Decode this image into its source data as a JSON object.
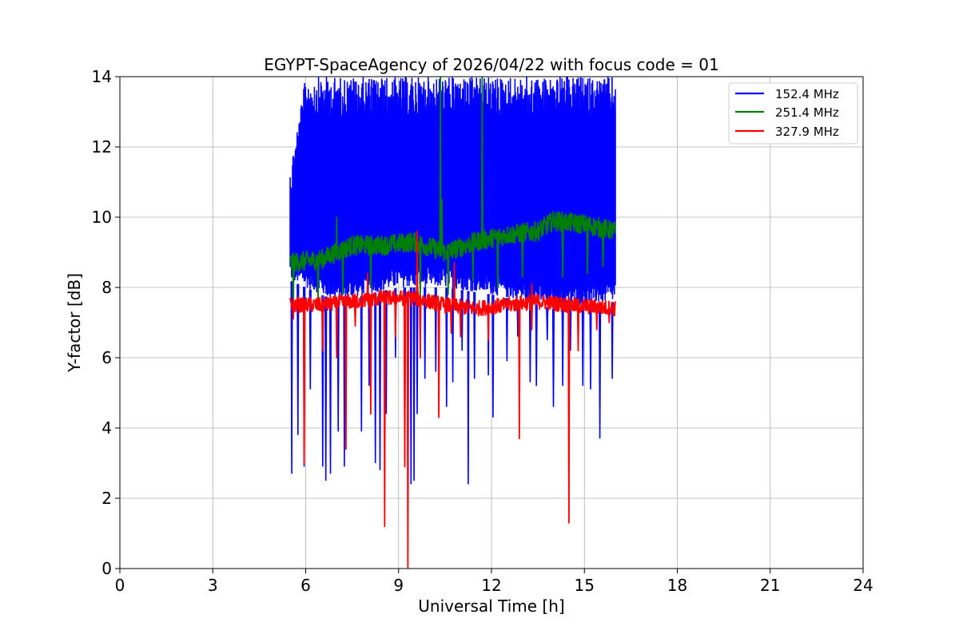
{
  "chart_data": {
    "type": "line",
    "title": "EGYPT-SpaceAgency of 2026/04/22 with focus code = 01",
    "xlabel": "Universal Time [h]",
    "ylabel": "Y-factor [dB]",
    "xlim": [
      0,
      24
    ],
    "ylim": [
      0,
      14
    ],
    "x_ticks": [
      "0",
      "3",
      "6",
      "9",
      "12",
      "15",
      "18",
      "21",
      "24"
    ],
    "y_ticks": [
      "0",
      "2",
      "4",
      "6",
      "8",
      "10",
      "12",
      "14"
    ],
    "grid": true,
    "legend_position": "top-right",
    "x_range_observed": [
      5.5,
      16.0
    ],
    "series": [
      {
        "name": "152.4 MHz",
        "color": "#0000ff",
        "band_low": [
          [
            5.5,
            8.2
          ],
          [
            7.0,
            7.6
          ],
          [
            9.0,
            8.0
          ],
          [
            10.5,
            8.0
          ],
          [
            12.0,
            7.8
          ],
          [
            14.0,
            7.4
          ],
          [
            16.0,
            7.6
          ]
        ],
        "band_high": [
          [
            5.5,
            11.5
          ],
          [
            6.0,
            14.0
          ],
          [
            16.0,
            14.0
          ]
        ],
        "dips": [
          [
            5.55,
            2.7
          ],
          [
            5.75,
            3.8
          ],
          [
            5.95,
            2.9
          ],
          [
            6.15,
            5.1
          ],
          [
            6.55,
            2.9
          ],
          [
            6.65,
            2.5
          ],
          [
            6.8,
            2.7
          ],
          [
            7.05,
            3.9
          ],
          [
            7.25,
            2.9
          ],
          [
            7.8,
            3.9
          ],
          [
            8.05,
            5.2
          ],
          [
            8.25,
            3.0
          ],
          [
            8.4,
            2.8
          ],
          [
            8.6,
            4.4
          ],
          [
            8.9,
            6.0
          ],
          [
            9.2,
            3.1
          ],
          [
            9.4,
            2.4
          ],
          [
            9.5,
            2.5
          ],
          [
            9.6,
            4.4
          ],
          [
            9.85,
            5.4
          ],
          [
            10.2,
            5.6
          ],
          [
            10.55,
            4.6
          ],
          [
            10.75,
            5.3
          ],
          [
            11.05,
            6.2
          ],
          [
            11.25,
            2.4
          ],
          [
            11.45,
            5.4
          ],
          [
            11.9,
            5.5
          ],
          [
            12.05,
            4.3
          ],
          [
            12.5,
            5.9
          ],
          [
            12.85,
            6.6
          ],
          [
            13.25,
            5.3
          ],
          [
            13.45,
            5.2
          ],
          [
            13.8,
            6.5
          ],
          [
            14.0,
            4.6
          ],
          [
            14.3,
            5.2
          ],
          [
            14.55,
            6.2
          ],
          [
            14.95,
            5.2
          ],
          [
            15.2,
            5.1
          ],
          [
            15.5,
            3.7
          ],
          [
            15.9,
            5.4
          ]
        ]
      },
      {
        "name": "251.4 MHz",
        "color": "#008000",
        "trend": [
          [
            5.5,
            8.7
          ],
          [
            6.5,
            8.8
          ],
          [
            7.5,
            9.2
          ],
          [
            8.5,
            9.2
          ],
          [
            9.5,
            9.3
          ],
          [
            10.5,
            9.0
          ],
          [
            11.5,
            9.3
          ],
          [
            12.5,
            9.5
          ],
          [
            13.5,
            9.6
          ],
          [
            14.0,
            9.9
          ],
          [
            15.0,
            9.8
          ],
          [
            16.0,
            9.6
          ]
        ],
        "spikes": [
          [
            10.35,
            14.0
          ],
          [
            11.7,
            14.0
          ],
          [
            10.4,
            10.5
          ],
          [
            7.0,
            10.0
          ]
        ],
        "dips": [
          [
            5.6,
            7.5
          ],
          [
            6.4,
            7.6
          ],
          [
            7.2,
            7.8
          ],
          [
            8.1,
            8.0
          ],
          [
            9.7,
            7.7
          ],
          [
            10.6,
            7.8
          ],
          [
            11.4,
            8.2
          ],
          [
            12.2,
            8.0
          ],
          [
            13.0,
            8.3
          ],
          [
            14.3,
            8.3
          ],
          [
            15.1,
            8.4
          ],
          [
            15.6,
            8.6
          ]
        ]
      },
      {
        "name": "327.9 MHz",
        "color": "#ff0000",
        "trend": [
          [
            5.5,
            7.5
          ],
          [
            6.5,
            7.5
          ],
          [
            7.5,
            7.6
          ],
          [
            8.5,
            7.7
          ],
          [
            9.5,
            7.7
          ],
          [
            10.5,
            7.5
          ],
          [
            11.5,
            7.4
          ],
          [
            12.5,
            7.5
          ],
          [
            13.5,
            7.6
          ],
          [
            14.5,
            7.5
          ],
          [
            16.0,
            7.4
          ]
        ],
        "spikes": [
          [
            9.6,
            9.6
          ],
          [
            8.0,
            8.4
          ],
          [
            10.8,
            8.7
          ],
          [
            13.3,
            8.1
          ]
        ],
        "dips": [
          [
            5.6,
            7.1
          ],
          [
            5.95,
            3.0
          ],
          [
            6.55,
            6.2
          ],
          [
            7.0,
            6.0
          ],
          [
            7.3,
            3.4
          ],
          [
            7.6,
            6.9
          ],
          [
            8.1,
            4.4
          ],
          [
            8.55,
            1.2
          ],
          [
            8.9,
            6.6
          ],
          [
            9.2,
            2.9
          ],
          [
            9.3,
            0.0
          ],
          [
            9.7,
            6.0
          ],
          [
            10.3,
            4.3
          ],
          [
            10.7,
            6.7
          ],
          [
            11.0,
            6.6
          ],
          [
            11.9,
            6.5
          ],
          [
            12.9,
            3.7
          ],
          [
            13.3,
            6.8
          ],
          [
            14.5,
            1.3
          ],
          [
            14.8,
            6.2
          ],
          [
            15.4,
            6.8
          ],
          [
            15.8,
            7.0
          ]
        ]
      }
    ]
  }
}
